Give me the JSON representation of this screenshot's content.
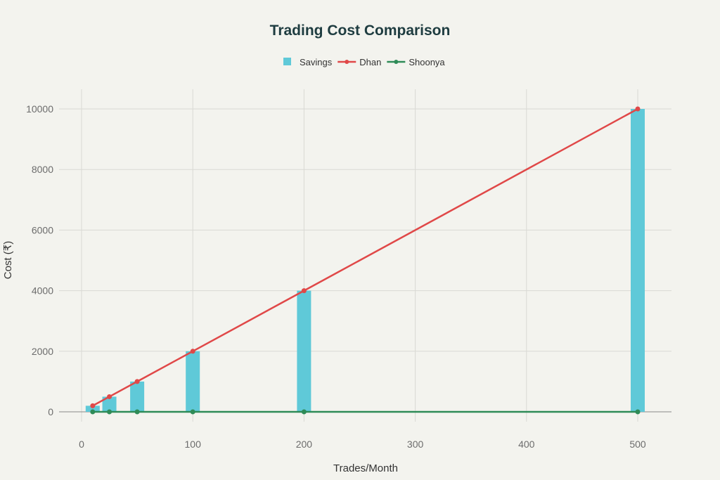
{
  "chart_data": {
    "type": "bar+line",
    "title": "Trading Cost Comparison",
    "xlabel": "Trades/Month",
    "ylabel": "Cost (₹)",
    "x": [
      10,
      25,
      50,
      100,
      200,
      500
    ],
    "xlim": [
      0,
      500
    ],
    "ylim": [
      0,
      10000
    ],
    "xticks": [
      "0",
      "100",
      "200",
      "300",
      "400",
      "500"
    ],
    "yticks": [
      "0",
      "2000",
      "4000",
      "6000",
      "8000",
      "10000"
    ],
    "grid": true,
    "legend_position": "top-center",
    "series": [
      {
        "name": "Savings",
        "kind": "bar",
        "color": "#5fc9d8",
        "values": [
          200,
          500,
          1000,
          2000,
          4000,
          10000
        ]
      },
      {
        "name": "Dhan",
        "kind": "line",
        "color": "#e04848",
        "values": [
          200,
          500,
          1000,
          2000,
          4000,
          10000
        ]
      },
      {
        "name": "Shoonya",
        "kind": "line",
        "color": "#2e8b57",
        "values": [
          0,
          0,
          0,
          0,
          0,
          0
        ]
      }
    ]
  }
}
